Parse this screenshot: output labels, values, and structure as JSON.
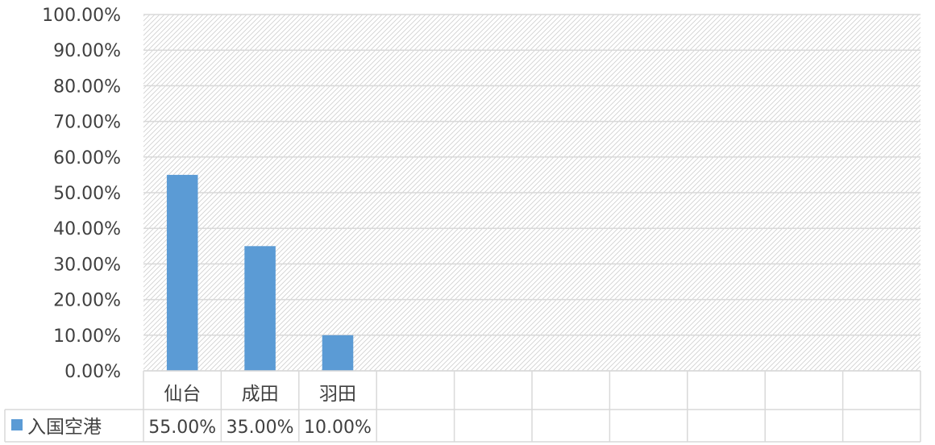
{
  "chart_data": {
    "type": "bar",
    "categories": [
      "仙台",
      "成田",
      "羽田",
      "",
      "",
      "",
      "",
      "",
      "",
      ""
    ],
    "series": [
      {
        "name": "入国空港",
        "values": [
          55,
          35,
          10,
          null,
          null,
          null,
          null,
          null,
          null,
          null
        ],
        "labels": [
          "55.00%",
          "35.00%",
          "10.00%",
          "",
          "",
          "",
          "",
          "",
          "",
          ""
        ]
      }
    ],
    "ylim": [
      0,
      100
    ],
    "yticks": [
      "0.00%",
      "10.00%",
      "20.00%",
      "30.00%",
      "40.00%",
      "50.00%",
      "60.00%",
      "70.00%",
      "80.00%",
      "90.00%",
      "100.00%"
    ],
    "xlabel": "",
    "ylabel": "",
    "grid": true,
    "data_table": true,
    "colors": {
      "bar": "#5B9BD5",
      "grid": "#D9D9D9",
      "hatch": "#D0D0D0",
      "text": "#404040"
    }
  }
}
